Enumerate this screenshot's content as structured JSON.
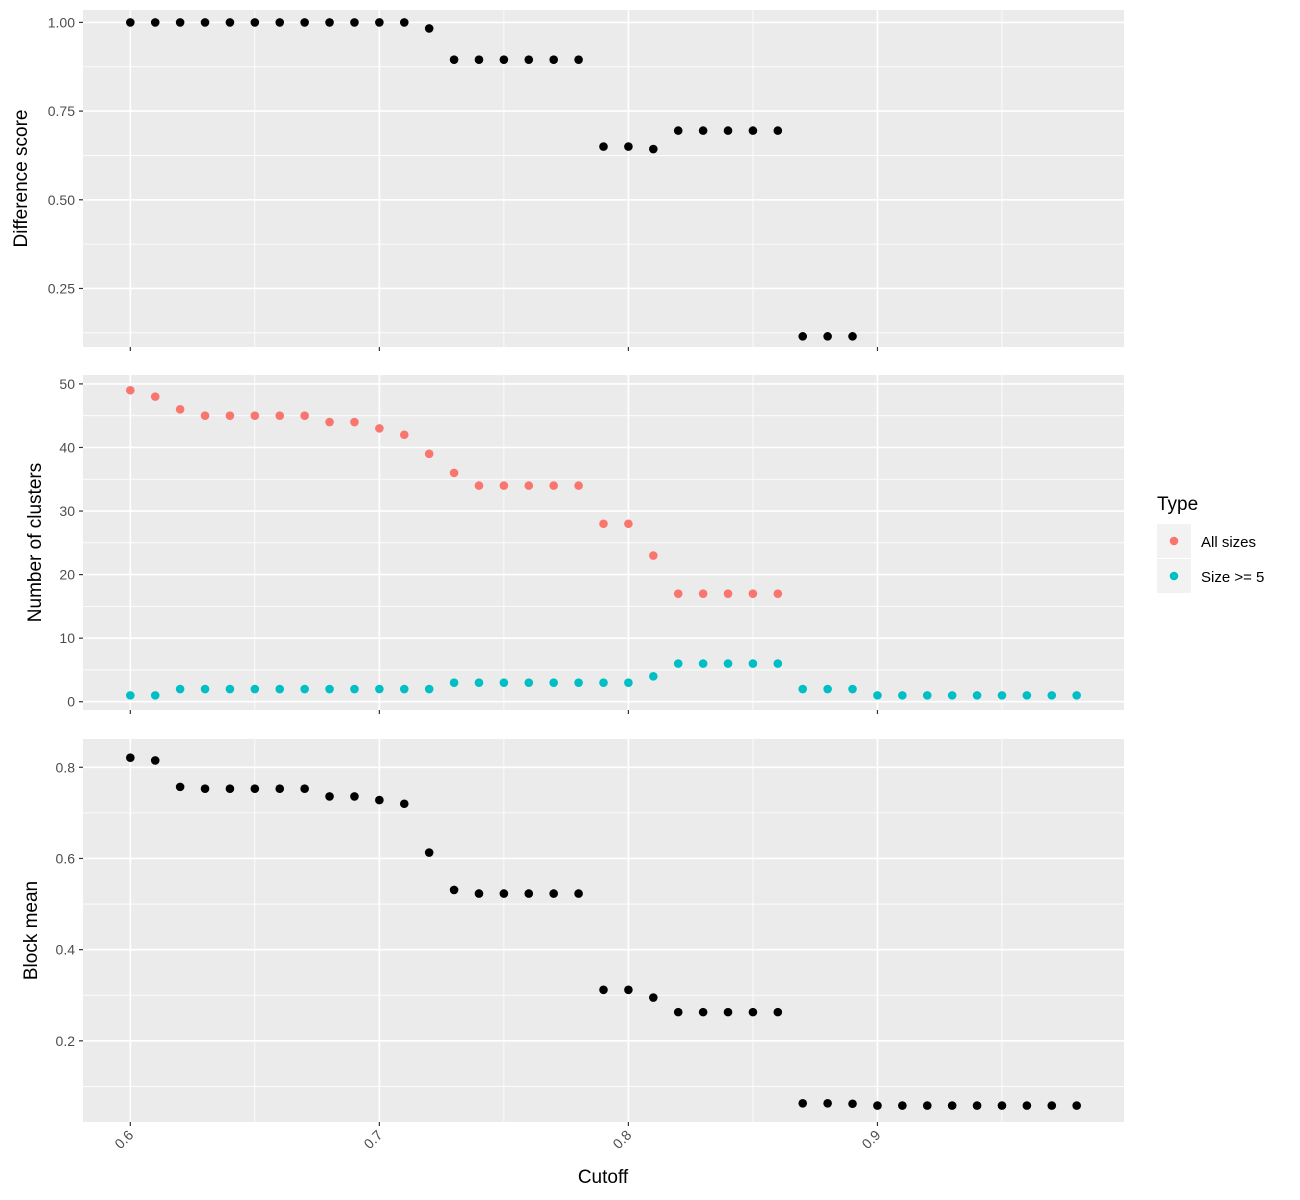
{
  "chart_data": {
    "type": "scatter",
    "xlabel": "Cutoff",
    "xlim": [
      0.581,
      0.999
    ],
    "x_ticks": [
      0.6,
      0.7,
      0.8,
      0.9
    ],
    "x_tick_labels": [
      "0.6",
      "0.7",
      "0.8",
      "0.9"
    ],
    "grid": true,
    "background": "#ebebeb",
    "legend": {
      "title": "Type",
      "position": "right",
      "entries": [
        {
          "label": "All sizes",
          "color": "#F8766D"
        },
        {
          "label": "Size >= 5",
          "color": "#00BFC4"
        }
      ]
    },
    "panels": [
      {
        "ylabel": "Difference score",
        "ylim": [
          0.085,
          1.035
        ],
        "y_ticks": [
          0.25,
          0.5,
          0.75,
          1.0
        ],
        "y_tick_labels": [
          "0.25",
          "0.50",
          "0.75",
          "1.00"
        ],
        "series": [
          {
            "color": "#000000",
            "x": [
              0.6,
              0.61,
              0.62,
              0.63,
              0.64,
              0.65,
              0.66,
              0.67,
              0.68,
              0.69,
              0.7,
              0.71,
              0.72,
              0.73,
              0.74,
              0.75,
              0.76,
              0.77,
              0.78,
              0.79,
              0.8,
              0.81,
              0.82,
              0.83,
              0.84,
              0.85,
              0.86,
              0.87,
              0.88,
              0.89
            ],
            "y": [
              1.0,
              1.0,
              1.0,
              1.0,
              1.0,
              1.0,
              1.0,
              1.0,
              1.0,
              1.0,
              1.0,
              1.0,
              0.983,
              0.895,
              0.895,
              0.895,
              0.895,
              0.895,
              0.895,
              0.65,
              0.65,
              0.643,
              0.695,
              0.695,
              0.695,
              0.695,
              0.695,
              0.115,
              0.115,
              0.115
            ]
          }
        ]
      },
      {
        "ylabel": "Number of clusters",
        "ylim": [
          -1.3,
          51.4
        ],
        "y_ticks": [
          0,
          10,
          20,
          30,
          40,
          50
        ],
        "y_tick_labels": [
          "0",
          "10",
          "20",
          "30",
          "40",
          "50"
        ],
        "series": [
          {
            "name": "All sizes",
            "color": "#F8766D",
            "x": [
              0.6,
              0.61,
              0.62,
              0.63,
              0.64,
              0.65,
              0.66,
              0.67,
              0.68,
              0.69,
              0.7,
              0.71,
              0.72,
              0.73,
              0.74,
              0.75,
              0.76,
              0.77,
              0.78,
              0.79,
              0.8,
              0.81,
              0.82,
              0.83,
              0.84,
              0.85,
              0.86
            ],
            "y": [
              49,
              48,
              46,
              45,
              45,
              45,
              45,
              45,
              44,
              44,
              43,
              42,
              39,
              36,
              34,
              34,
              34,
              34,
              34,
              28,
              28,
              23,
              17,
              17,
              17,
              17,
              17
            ]
          },
          {
            "name": "Size >= 5",
            "color": "#00BFC4",
            "x": [
              0.6,
              0.61,
              0.62,
              0.63,
              0.64,
              0.65,
              0.66,
              0.67,
              0.68,
              0.69,
              0.7,
              0.71,
              0.72,
              0.73,
              0.74,
              0.75,
              0.76,
              0.77,
              0.78,
              0.79,
              0.8,
              0.81,
              0.82,
              0.83,
              0.84,
              0.85,
              0.86,
              0.87,
              0.88,
              0.89,
              0.9,
              0.91,
              0.92,
              0.93,
              0.94,
              0.95,
              0.96,
              0.97,
              0.98
            ],
            "y": [
              1,
              1,
              2,
              2,
              2,
              2,
              2,
              2,
              2,
              2,
              2,
              2,
              2,
              3,
              3,
              3,
              3,
              3,
              3,
              3,
              3,
              4,
              6,
              6,
              6,
              6,
              6,
              2,
              2,
              2,
              1,
              1,
              1,
              1,
              1,
              1,
              1,
              1,
              1
            ]
          }
        ]
      },
      {
        "ylabel": "Block mean",
        "ylim": [
          0.022,
          0.862
        ],
        "y_ticks": [
          0.2,
          0.4,
          0.6,
          0.8
        ],
        "y_tick_labels": [
          "0.2",
          "0.4",
          "0.6",
          "0.8"
        ],
        "series": [
          {
            "color": "#000000",
            "x": [
              0.6,
              0.61,
              0.62,
              0.63,
              0.64,
              0.65,
              0.66,
              0.67,
              0.68,
              0.69,
              0.7,
              0.71,
              0.72,
              0.73,
              0.74,
              0.75,
              0.76,
              0.77,
              0.78,
              0.79,
              0.8,
              0.81,
              0.82,
              0.83,
              0.84,
              0.85,
              0.86,
              0.87,
              0.88,
              0.89,
              0.9,
              0.91,
              0.92,
              0.93,
              0.94,
              0.95,
              0.96,
              0.97,
              0.98
            ],
            "y": [
              0.821,
              0.815,
              0.757,
              0.753,
              0.753,
              0.753,
              0.753,
              0.753,
              0.736,
              0.736,
              0.728,
              0.72,
              0.613,
              0.531,
              0.523,
              0.523,
              0.523,
              0.523,
              0.523,
              0.312,
              0.312,
              0.295,
              0.263,
              0.263,
              0.263,
              0.263,
              0.263,
              0.063,
              0.063,
              0.062,
              0.058,
              0.058,
              0.058,
              0.058,
              0.058,
              0.058,
              0.058,
              0.058,
              0.058
            ]
          }
        ]
      }
    ]
  }
}
